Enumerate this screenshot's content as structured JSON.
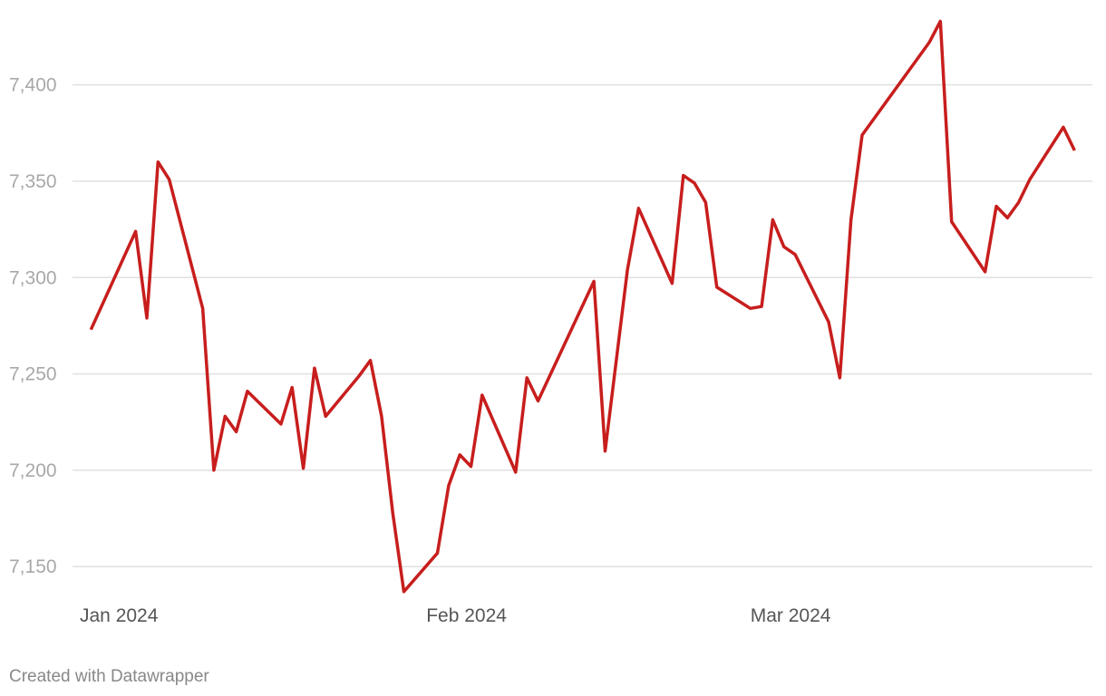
{
  "chart_data": {
    "type": "line",
    "footer": "Created with Datawrapper",
    "x": [
      1,
      5,
      6,
      7,
      8,
      11,
      12,
      13,
      14,
      15,
      18,
      19,
      20,
      21,
      22,
      25,
      26,
      27,
      28,
      29,
      32,
      33,
      34,
      35,
      36,
      39,
      40,
      41,
      46,
      47,
      49,
      50,
      53,
      54,
      55,
      56,
      57,
      60,
      61,
      62,
      63,
      64,
      67,
      68,
      69,
      70,
      76,
      77,
      78,
      81,
      82,
      83,
      84,
      85,
      88,
      89
    ],
    "series": [
      {
        "color": "#c71e1d",
        "values": [
          7273,
          7324,
          7279,
          7360,
          7351,
          7284,
          7200,
          7228,
          7220,
          7241,
          7224,
          7243,
          7201,
          7253,
          7228,
          7249,
          7257,
          7228,
          7178,
          7137,
          7157,
          7192,
          7208,
          7202,
          7239,
          7199,
          7248,
          7236,
          7298,
          7210,
          7304,
          7336,
          7297,
          7353,
          7349,
          7339,
          7295,
          7284,
          7285,
          7330,
          7316,
          7312,
          7277,
          7248,
          7330,
          7374,
          7422,
          7433,
          7329,
          7303,
          7337,
          7331,
          7339,
          7351,
          7378,
          7366
        ]
      }
    ],
    "xlim": [
      0,
      90.6
    ],
    "xticks": [
      {
        "value": 0,
        "label": "Jan 2024"
      },
      {
        "value": 31,
        "label": "Feb 2024"
      },
      {
        "value": 60,
        "label": "Mar 2024"
      }
    ],
    "ylim": [
      7136,
      7437
    ],
    "yticks": [
      {
        "value": 7150,
        "label": "7,150"
      },
      {
        "value": 7200,
        "label": "7,200"
      },
      {
        "value": 7250,
        "label": "7,250"
      },
      {
        "value": 7300,
        "label": "7,300"
      },
      {
        "value": 7350,
        "label": "7,350"
      },
      {
        "value": 7400,
        "label": "7,400"
      }
    ],
    "grid": true
  }
}
